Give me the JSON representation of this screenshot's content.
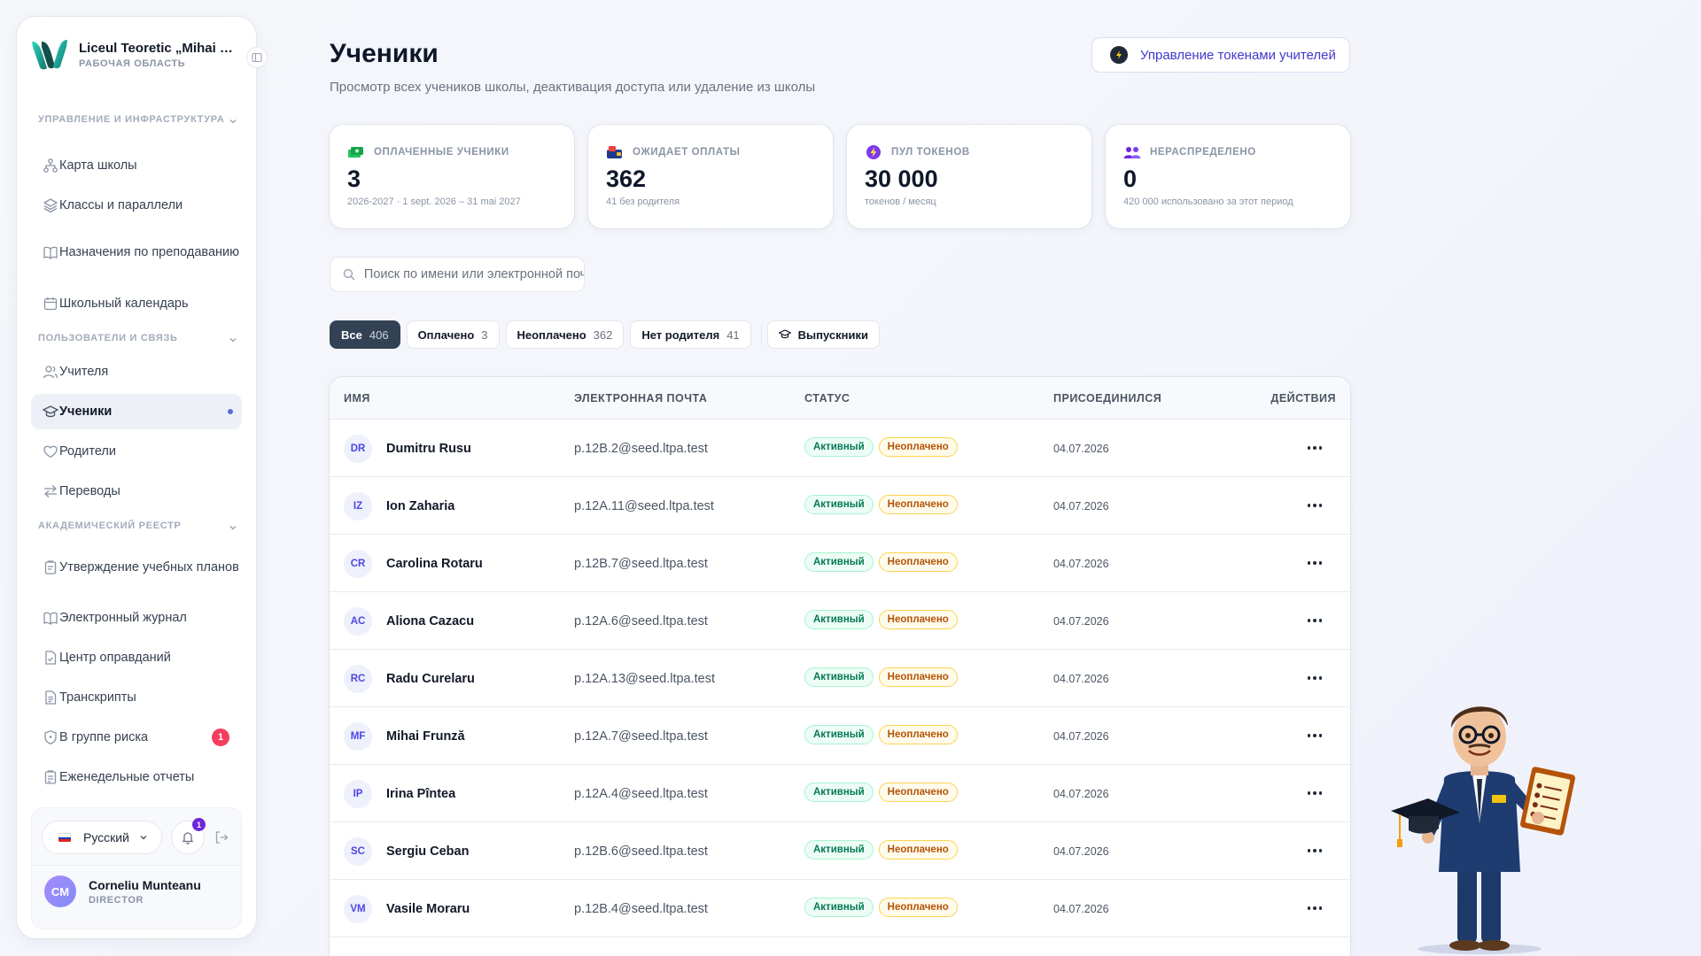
{
  "sidebar": {
    "school_name": "Liceul Teoretic „Mihai Emi…",
    "workspace_label": "РАБОЧАЯ ОБЛАСТЬ",
    "sections": [
      {
        "title": "УПРАВЛЕНИЕ И ИНФРАСТРУКТУРА",
        "items": [
          {
            "label": "Карта школы",
            "icon": "sitemap-icon"
          },
          {
            "label": "Классы и параллели",
            "icon": "layers-icon"
          },
          {
            "label": "Назначения по преподаванию",
            "icon": "book-open-icon"
          },
          {
            "label": "Школьный календарь",
            "icon": "calendar-icon"
          }
        ]
      },
      {
        "title": "ПОЛЬЗОВАТЕЛИ И СВЯЗЬ",
        "items": [
          {
            "label": "Учителя",
            "icon": "users-icon"
          },
          {
            "label": "Ученики",
            "icon": "graduation-cap-icon",
            "active": true
          },
          {
            "label": "Родители",
            "icon": "heart-icon"
          },
          {
            "label": "Переводы",
            "icon": "arrows-exchange-icon"
          }
        ]
      },
      {
        "title": "АКАДЕМИЧЕСКИЙ РЕЕСТР",
        "items": [
          {
            "label": "Утверждение учебных планов",
            "icon": "clipboard-icon"
          },
          {
            "label": "Электронный журнал",
            "icon": "book-open-icon"
          },
          {
            "label": "Центр оправданий",
            "icon": "file-check-icon"
          },
          {
            "label": "Транскрипты",
            "icon": "file-text-icon"
          },
          {
            "label": "В группе риска",
            "icon": "shield-icon",
            "badge": "1"
          },
          {
            "label": "Еженедельные отчеты",
            "icon": "clipboard-list-icon"
          }
        ]
      }
    ],
    "language": "Русский",
    "notifications_count": "1",
    "user": {
      "initials": "CM",
      "name": "Corneliu Munteanu",
      "role": "DIRECTOR"
    }
  },
  "header": {
    "title": "Ученики",
    "subtitle": "Просмотр всех учеников школы, деактивация доступа или удаление из школы",
    "token_button": "Управление токенами учителей"
  },
  "stats": [
    {
      "label": "ОПЛАЧЕННЫЕ УЧЕНИКИ",
      "value": "3",
      "sub": "2026-2027 · 1 sept. 2026 – 31 mai 2027"
    },
    {
      "label": "ОЖИДАЕТ ОПЛАТЫ",
      "value": "362",
      "sub": "41 без родителя"
    },
    {
      "label": "ПУЛ ТОКЕНОВ",
      "value": "30 000",
      "sub": "токенов / месяц"
    },
    {
      "label": "НЕРАСПРЕДЕЛЕНО",
      "value": "0",
      "sub": "420 000 использовано за этот период"
    }
  ],
  "search": {
    "placeholder": "Поиск по имени или электронной почте"
  },
  "filters": [
    {
      "label": "Все",
      "count": "406",
      "active": true
    },
    {
      "label": "Оплачено",
      "count": "3"
    },
    {
      "label": "Неоплачено",
      "count": "362"
    },
    {
      "label": "Нет родителя",
      "count": "41"
    }
  ],
  "graduates_button": "Выпускники",
  "table": {
    "columns": [
      "ИМЯ",
      "ЭЛЕКТРОННАЯ ПОЧТА",
      "СТАТУС",
      "ПРИСОЕДИНИЛСЯ",
      "ДЕЙСТВИЯ"
    ],
    "rows": [
      {
        "initials": "DR",
        "name": "Dumitru Rusu",
        "email": "p.12B.2@seed.ltpa.test",
        "status": "Активный",
        "payment": "Неоплачено",
        "joined": "04.07.2026"
      },
      {
        "initials": "IZ",
        "name": "Ion Zaharia",
        "email": "p.12A.11@seed.ltpa.test",
        "status": "Активный",
        "payment": "Неоплачено",
        "joined": "04.07.2026"
      },
      {
        "initials": "CR",
        "name": "Carolina Rotaru",
        "email": "p.12B.7@seed.ltpa.test",
        "status": "Активный",
        "payment": "Неоплачено",
        "joined": "04.07.2026"
      },
      {
        "initials": "AC",
        "name": "Aliona Cazacu",
        "email": "p.12A.6@seed.ltpa.test",
        "status": "Активный",
        "payment": "Неоплачено",
        "joined": "04.07.2026"
      },
      {
        "initials": "RC",
        "name": "Radu Curelaru",
        "email": "p.12A.13@seed.ltpa.test",
        "status": "Активный",
        "payment": "Неоплачено",
        "joined": "04.07.2026"
      },
      {
        "initials": "MF",
        "name": "Mihai Frunză",
        "email": "p.12A.7@seed.ltpa.test",
        "status": "Активный",
        "payment": "Неоплачено",
        "joined": "04.07.2026"
      },
      {
        "initials": "IP",
        "name": "Irina Pîntea",
        "email": "p.12A.4@seed.ltpa.test",
        "status": "Активный",
        "payment": "Неоплачено",
        "joined": "04.07.2026"
      },
      {
        "initials": "SC",
        "name": "Sergiu Ceban",
        "email": "p.12B.6@seed.ltpa.test",
        "status": "Активный",
        "payment": "Неоплачено",
        "joined": "04.07.2026"
      },
      {
        "initials": "VM",
        "name": "Vasile Moraru",
        "email": "p.12B.4@seed.ltpa.test",
        "status": "Активный",
        "payment": "Неоплачено",
        "joined": "04.07.2026"
      }
    ]
  },
  "colors": {
    "accent": "#4338ca",
    "active_chip": "#334155",
    "badge_red": "#f43f5e",
    "status_green": "#047857",
    "status_orange": "#b45309"
  }
}
